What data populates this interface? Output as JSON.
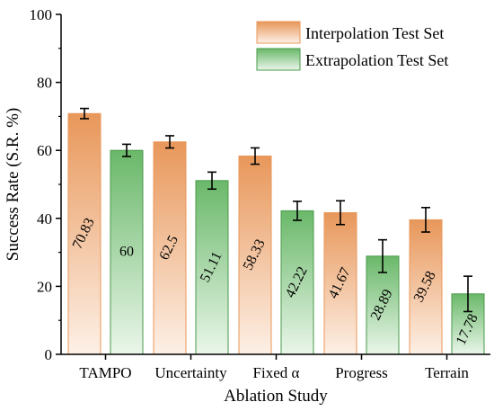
{
  "chart_data": {
    "type": "bar",
    "xlabel": "Ablation Study",
    "ylabel": "Success Rate (S.R. %)",
    "ylim": [
      0,
      100
    ],
    "yticks": [
      0,
      20,
      40,
      60,
      80,
      100
    ],
    "categories": [
      "TAMPO",
      "Uncertainty",
      "Fixed α",
      "Progress",
      "Terrain"
    ],
    "series": [
      {
        "name": "Interpolation Test Set",
        "color": "#e8975a",
        "values": [
          70.83,
          62.5,
          58.33,
          41.67,
          39.58
        ],
        "errors": [
          1.5,
          1.8,
          2.4,
          3.5,
          3.6
        ]
      },
      {
        "name": "Extrapolation Test Set",
        "color": "#6ab86a",
        "values": [
          60,
          51.11,
          42.22,
          28.89,
          17.78
        ],
        "errors": [
          1.8,
          2.5,
          2.8,
          4.8,
          5.2
        ]
      }
    ],
    "data_labels": [
      [
        "70.83",
        "62.5",
        "58.33",
        "41.67",
        "39.58"
      ],
      [
        "60",
        "51.11",
        "42.22",
        "28.89",
        "17.78"
      ]
    ],
    "legend_position": "top-right",
    "grid": false
  }
}
